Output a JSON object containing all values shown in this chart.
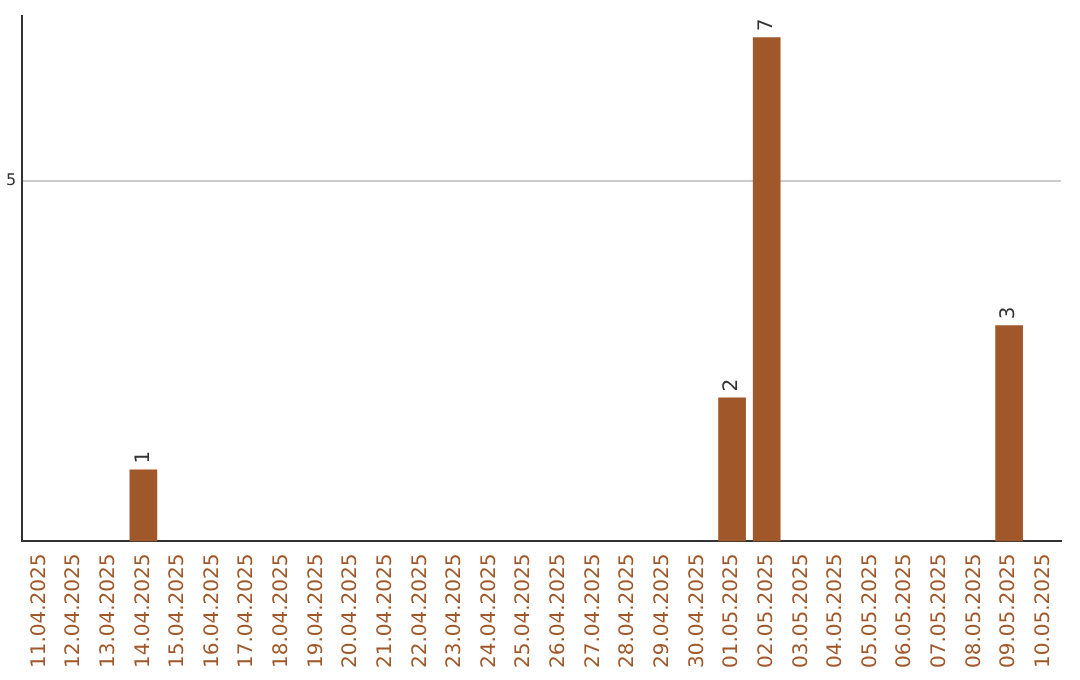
{
  "chart_data": {
    "type": "bar",
    "categories": [
      "11.04.2025",
      "12.04.2025",
      "13.04.2025",
      "14.04.2025",
      "15.04.2025",
      "16.04.2025",
      "17.04.2025",
      "18.04.2025",
      "19.04.2025",
      "20.04.2025",
      "21.04.2025",
      "22.04.2025",
      "23.04.2025",
      "24.04.2025",
      "25.04.2025",
      "26.04.2025",
      "27.04.2025",
      "28.04.2025",
      "29.04.2025",
      "30.04.2025",
      "01.05.2025",
      "02.05.2025",
      "03.05.2025",
      "04.05.2025",
      "05.05.2025",
      "06.05.2025",
      "07.05.2025",
      "08.05.2025",
      "09.05.2025",
      "10.05.2025"
    ],
    "values": [
      0,
      0,
      0,
      1,
      0,
      0,
      0,
      0,
      0,
      0,
      0,
      0,
      0,
      0,
      0,
      0,
      0,
      0,
      0,
      0,
      2,
      7,
      0,
      0,
      0,
      0,
      0,
      0,
      3,
      0
    ],
    "color": "#a0582a",
    "value_labels": [
      null,
      null,
      null,
      "1",
      null,
      null,
      null,
      null,
      null,
      null,
      null,
      null,
      null,
      null,
      null,
      null,
      null,
      null,
      null,
      null,
      "2",
      "7",
      null,
      null,
      null,
      null,
      null,
      null,
      "3",
      null
    ],
    "ylim": [
      0,
      7.3
    ],
    "yticks": [
      5
    ],
    "grid": "y",
    "legend": false
  }
}
